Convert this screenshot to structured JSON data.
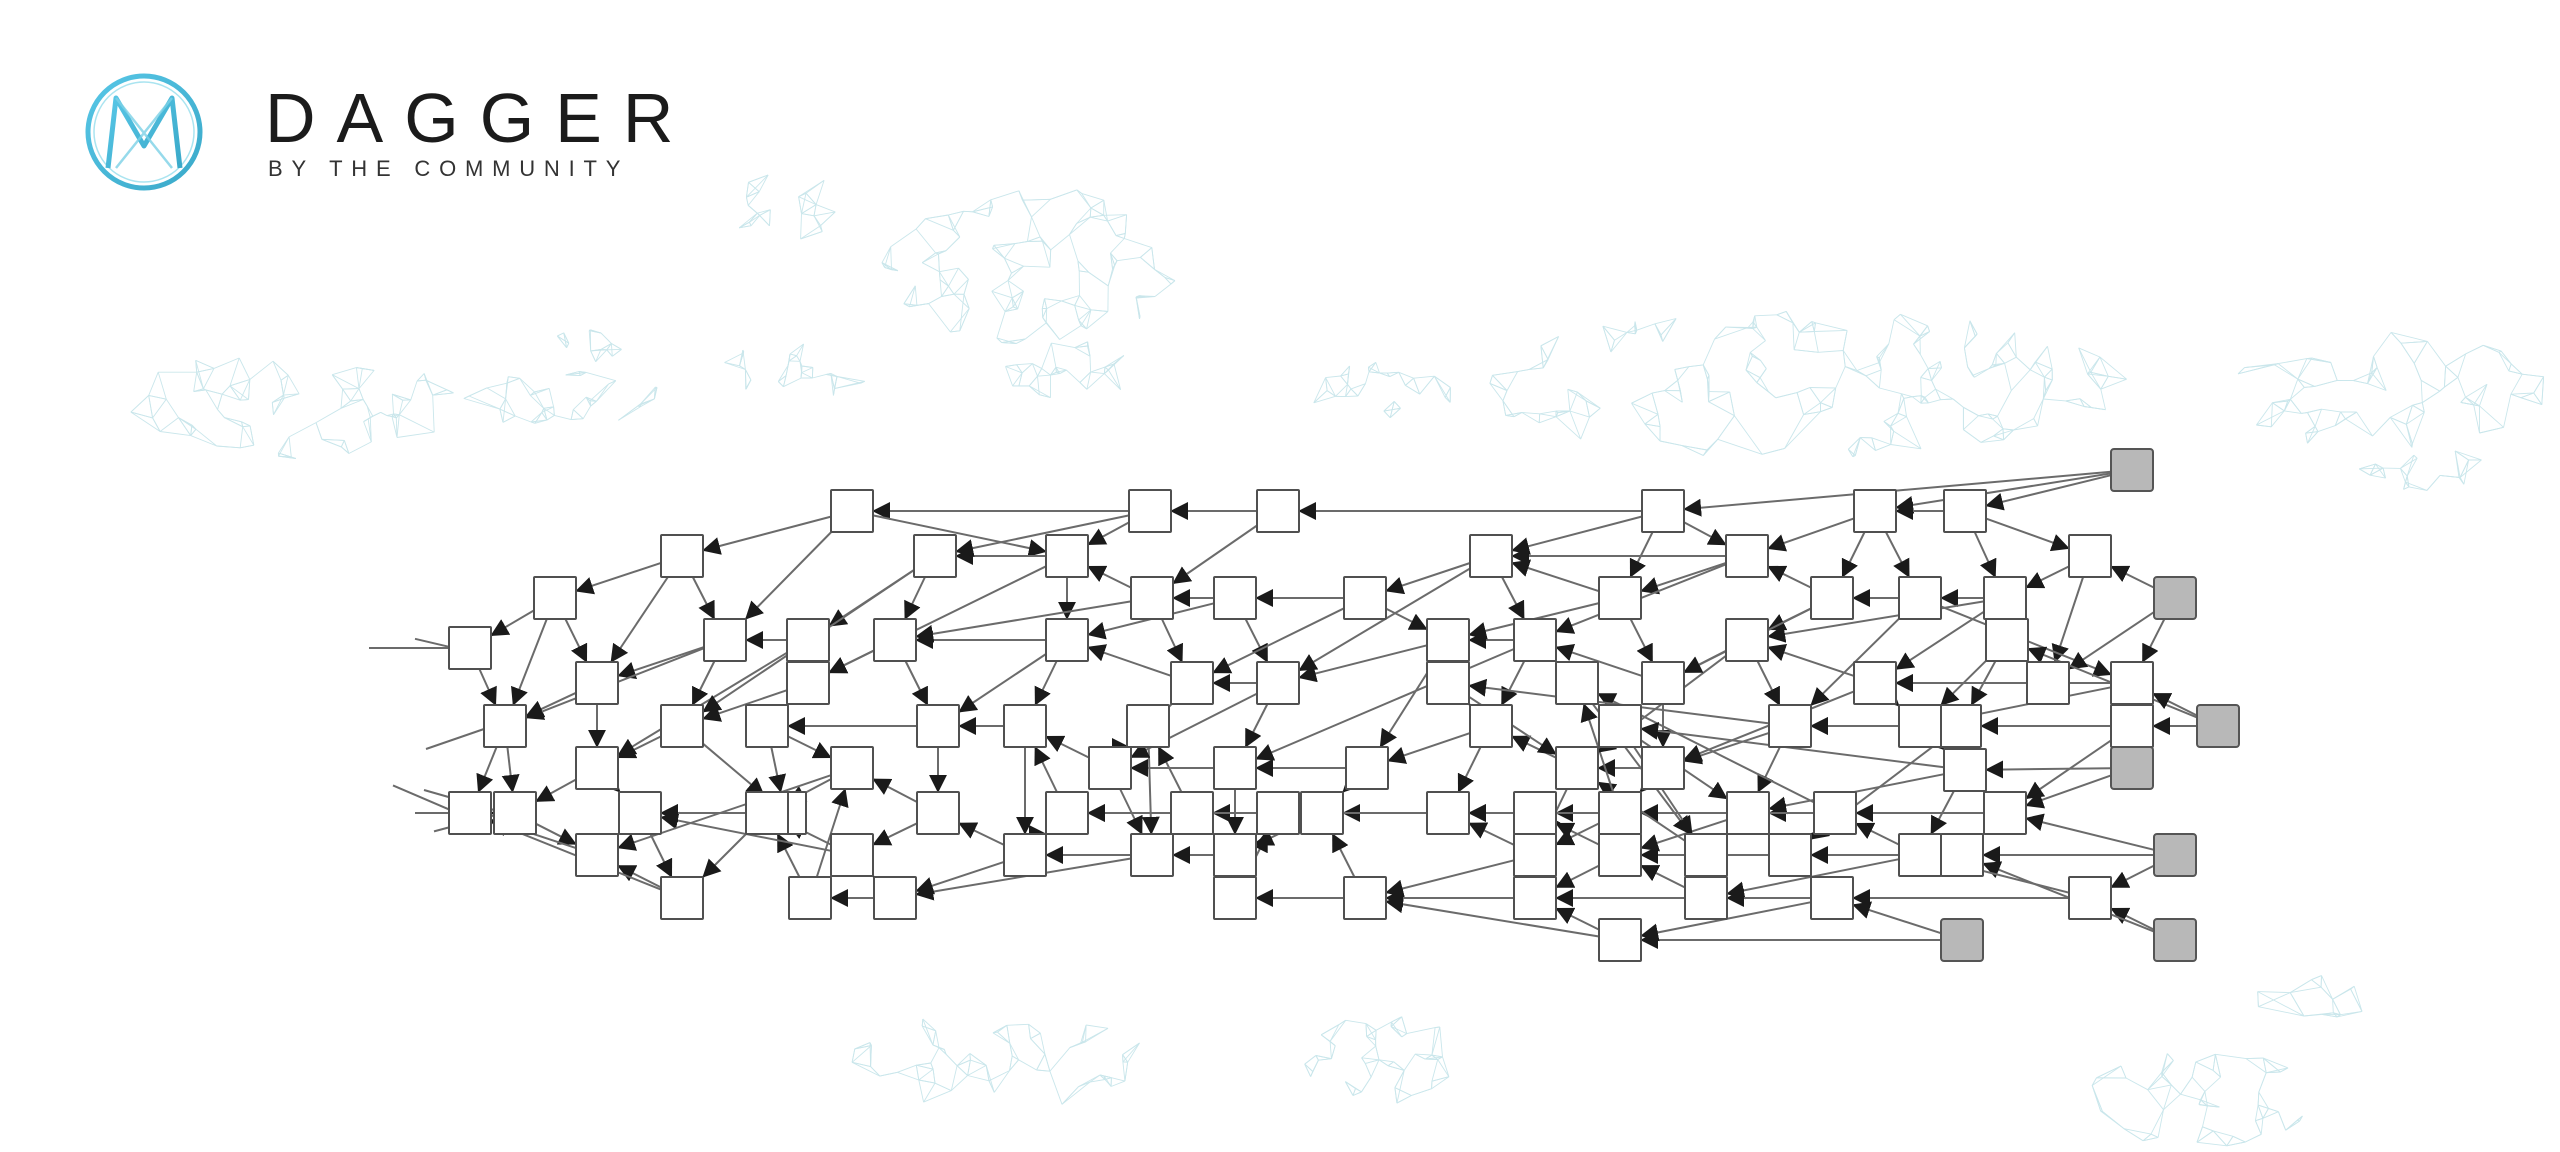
{
  "brand": {
    "title": "DAGGER",
    "subtitle": "BY THE COMMUNITY",
    "logo_icon": "interlocked-m-circle-logo",
    "logo_color": "#4cc4d8"
  },
  "diagram": {
    "type": "directed-acyclic-graph",
    "node_count": 103,
    "tip_node_count": 7,
    "colors": {
      "node_fill": "#ffffff",
      "node_stroke": "#505050",
      "tip_fill": "#b8b8b8",
      "tip_stroke": "#555555",
      "edge": "#6b6b6b",
      "background_mesh": "#9fd3dc"
    },
    "arrow_direction": "right-to-left"
  }
}
